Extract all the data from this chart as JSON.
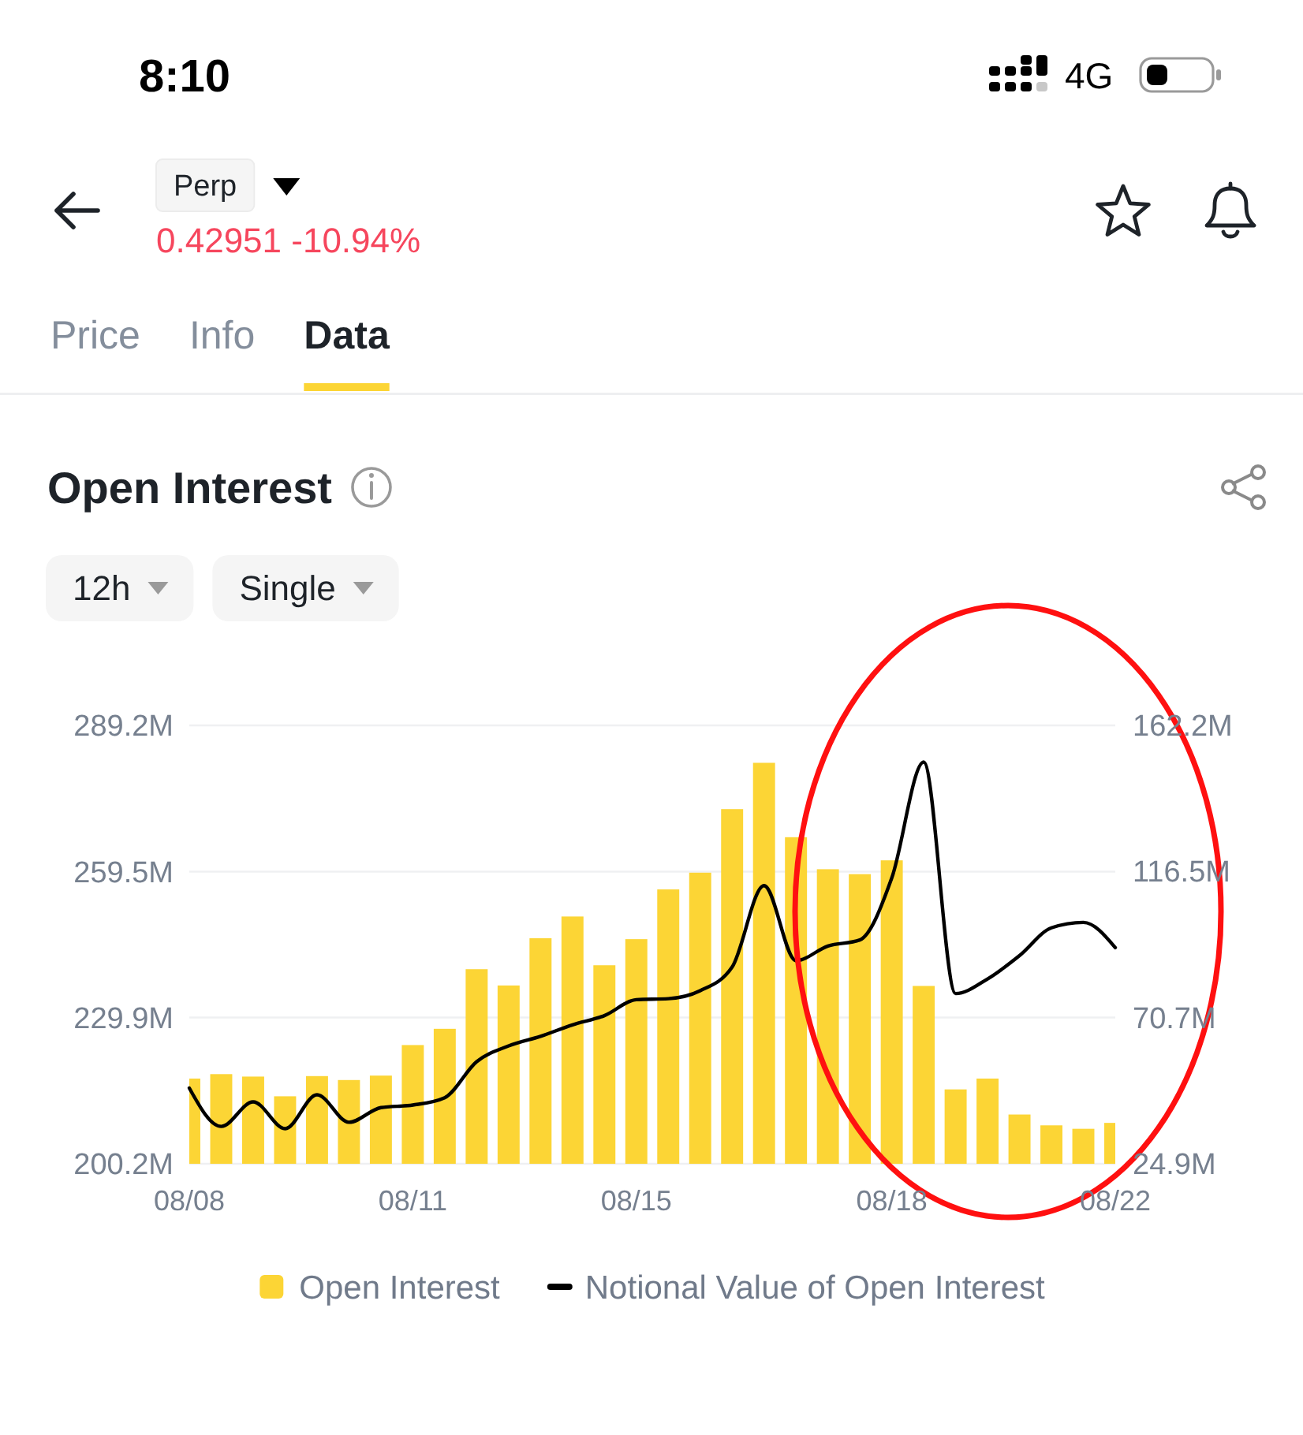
{
  "chart_data": {
    "type": "bar",
    "title": "Open Interest",
    "categories": [
      "08/08",
      null,
      null,
      null,
      null,
      null,
      null,
      "08/11",
      null,
      null,
      null,
      null,
      null,
      null,
      "08/15",
      null,
      null,
      null,
      null,
      null,
      null,
      null,
      "08/18",
      null,
      null,
      null,
      null,
      null,
      null,
      "08/22"
    ],
    "series": [
      {
        "name": "Open Interest",
        "color": "#fcd535",
        "values": [
          217.5,
          218.4,
          217.9,
          213.9,
          218,
          217.2,
          218.1,
          224.3,
          227.6,
          239.7,
          236.4,
          246,
          250.4,
          240.5,
          245.8,
          255.9,
          259.3,
          272.2,
          281.6,
          266.5,
          260,
          259,
          261.8,
          236.3,
          215.3,
          217.5,
          210.2,
          208,
          207.3,
          208.5
        ]
      },
      {
        "name": "Notional Value of Open Interest",
        "type": "line",
        "axis": "y2",
        "color": "#000000",
        "values": [
          48.6,
          36.6,
          44.3,
          35.9,
          46.5,
          37.9,
          42.5,
          43.3,
          45.6,
          56.9,
          61.8,
          64.8,
          68.4,
          71.3,
          76.3,
          76.6,
          79.1,
          86.5,
          112,
          88.5,
          93.1,
          95,
          114.4,
          150.7,
          78.2,
          82.8,
          90.1,
          98.8,
          100.5,
          92.6
        ]
      }
    ],
    "ylim": [
      200.2,
      289.2
    ],
    "yticks": [
      {
        "value": 200.2,
        "label": "200.2M"
      },
      {
        "value": 229.9,
        "label": "229.9M"
      },
      {
        "value": 259.5,
        "label": "259.5M"
      },
      {
        "value": 289.2,
        "label": "289.2M"
      }
    ],
    "y2lim": [
      24.9,
      162.2
    ],
    "y2ticks": [
      {
        "value": 24.9,
        "label": "24.9M"
      },
      {
        "value": 70.7,
        "label": "70.7M"
      },
      {
        "value": 116.5,
        "label": "116.5M"
      },
      {
        "value": 162.2,
        "label": "162.2M"
      }
    ],
    "grid": "y",
    "legend": "bottom",
    "annotations": [
      "8:10",
      "4G",
      "Perp",
      "0.42951 -10.94%",
      "Price",
      "Info",
      "Data",
      "12h",
      "Single"
    ]
  }
}
